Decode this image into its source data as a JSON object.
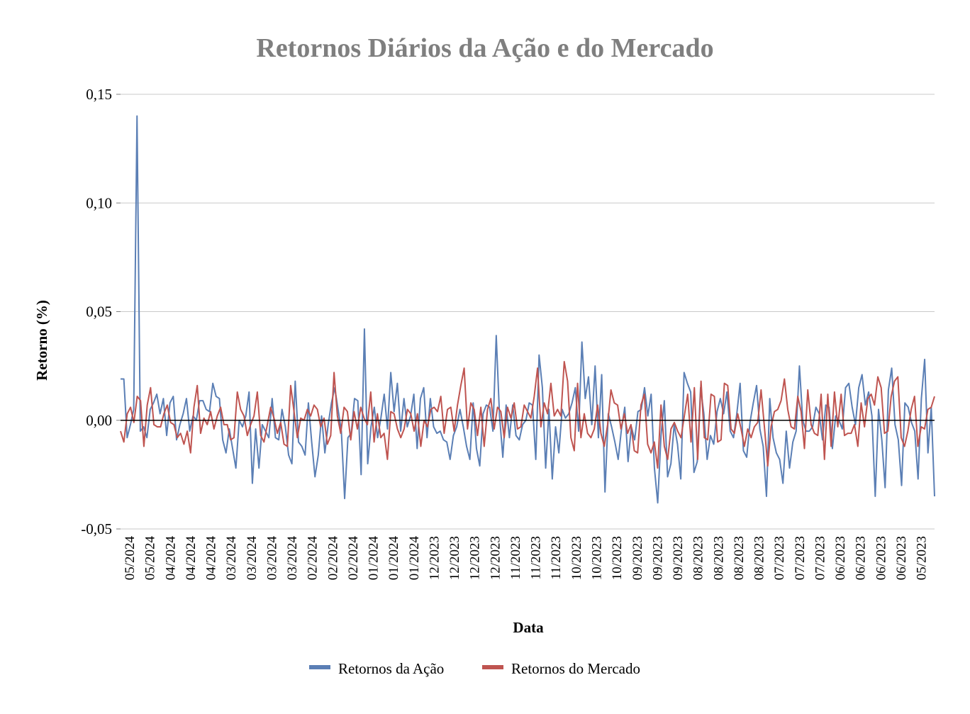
{
  "chart_data": {
    "type": "line",
    "title": "Retornos Diários da Ação e do Mercado",
    "xlabel": "Data",
    "ylabel": "Retorno (%)",
    "ylim": [
      -0.05,
      0.15
    ],
    "yticks": [
      "-0,05",
      "0,00",
      "0,05",
      "0,10",
      "0,15"
    ],
    "ytick_values": [
      -0.05,
      0.0,
      0.05,
      0.1,
      0.15
    ],
    "x_tick_labels": [
      "05/2024",
      "05/2024",
      "04/2024",
      "04/2024",
      "04/2024",
      "03/2024",
      "03/2024",
      "03/2024",
      "03/2024",
      "02/2024",
      "02/2024",
      "02/2024",
      "01/2024",
      "01/2024",
      "01/2024",
      "12/2023",
      "12/2023",
      "12/2023",
      "12/2023",
      "11/2023",
      "11/2023",
      "11/2023",
      "10/2023",
      "10/2023",
      "10/2023",
      "09/2023",
      "09/2023",
      "09/2023",
      "08/2023",
      "08/2023",
      "08/2023",
      "08/2023",
      "07/2023",
      "07/2023",
      "07/2023",
      "06/2023",
      "06/2023",
      "06/2023",
      "06/2023",
      "05/2023"
    ],
    "grid": true,
    "legend_position": "bottom-center",
    "colors": {
      "stock": "#5b7fb5",
      "market": "#bf5450",
      "title": "#7f7f7f",
      "grid": "#c9c9c9",
      "zero": "#000000"
    },
    "series": [
      {
        "name": "Retornos da Ação",
        "color": "#5b7fb5",
        "values": [
          0.019,
          0.019,
          -0.008,
          -0.002,
          0.005,
          0.14,
          -0.005,
          -0.003,
          -0.008,
          0.005,
          0.008,
          0.012,
          0.003,
          0.01,
          -0.007,
          0.008,
          0.011,
          -0.009,
          -0.002,
          0.003,
          0.01,
          -0.005,
          0.002,
          0.0,
          0.009,
          0.009,
          0.005,
          0.004,
          0.017,
          0.011,
          0.01,
          -0.009,
          -0.015,
          -0.004,
          -0.013,
          -0.022,
          0.0,
          -0.003,
          0.002,
          0.013,
          -0.029,
          -0.004,
          -0.022,
          -0.002,
          -0.005,
          -0.008,
          0.01,
          -0.008,
          -0.009,
          0.005,
          -0.003,
          -0.016,
          -0.02,
          0.018,
          -0.01,
          -0.012,
          -0.016,
          0.008,
          -0.01,
          -0.026,
          -0.016,
          0.002,
          -0.015,
          -0.002,
          0.008,
          0.015,
          0.005,
          -0.005,
          -0.036,
          -0.008,
          -0.006,
          0.01,
          0.009,
          -0.025,
          0.042,
          -0.02,
          -0.003,
          0.006,
          -0.008,
          0.001,
          0.012,
          -0.004,
          0.022,
          0.004,
          0.017,
          -0.005,
          0.01,
          -0.003,
          0.002,
          0.012,
          -0.013,
          0.01,
          0.015,
          -0.008,
          0.01,
          -0.003,
          -0.006,
          -0.005,
          -0.009,
          -0.01,
          -0.018,
          -0.007,
          -0.003,
          0.005,
          -0.003,
          -0.012,
          -0.018,
          0.008,
          -0.013,
          -0.021,
          0.003,
          0.007,
          0.006,
          -0.005,
          0.039,
          0.002,
          -0.017,
          0.007,
          -0.008,
          0.007,
          -0.007,
          -0.009,
          -0.002,
          0.0,
          0.008,
          0.007,
          -0.018,
          0.03,
          0.015,
          -0.022,
          0.005,
          -0.027,
          -0.003,
          -0.015,
          0.005,
          0.001,
          0.003,
          0.008,
          0.015,
          -0.005,
          0.036,
          0.01,
          0.02,
          -0.002,
          0.025,
          -0.008,
          0.021,
          -0.033,
          0.003,
          -0.003,
          -0.01,
          -0.018,
          -0.004,
          0.006,
          -0.019,
          -0.003,
          -0.009,
          0.004,
          0.005,
          0.015,
          0.002,
          0.012,
          -0.022,
          -0.038,
          -0.007,
          0.009,
          -0.026,
          -0.02,
          -0.002,
          -0.011,
          -0.027,
          0.022,
          0.017,
          0.013,
          -0.024,
          -0.019,
          0.015,
          0.003,
          -0.018,
          -0.007,
          -0.011,
          0.004,
          0.01,
          0.003,
          0.013,
          -0.005,
          -0.008,
          0.003,
          0.017,
          -0.014,
          -0.017,
          -0.001,
          0.008,
          0.016,
          -0.004,
          -0.012,
          -0.035,
          0.01,
          -0.008,
          -0.015,
          -0.018,
          -0.029,
          -0.005,
          -0.022,
          -0.01,
          -0.005,
          0.025,
          0.0,
          -0.005,
          -0.005,
          -0.003,
          0.006,
          0.003,
          -0.009,
          0.007,
          0.006,
          -0.013,
          0.002,
          0.0,
          -0.004,
          0.015,
          0.017,
          0.006,
          -0.002,
          0.015,
          0.021,
          0.007,
          0.013,
          0.002,
          -0.035,
          0.005,
          -0.009,
          -0.031,
          0.014,
          0.024,
          -0.002,
          -0.009,
          -0.03,
          0.008,
          0.006,
          -0.001,
          -0.005,
          -0.027,
          0.01,
          0.028,
          -0.015,
          0.006,
          -0.035
        ]
      },
      {
        "name": "Retornos do Mercado",
        "color": "#bf5450",
        "values": [
          -0.005,
          -0.01,
          0.003,
          0.006,
          -0.001,
          0.011,
          0.009,
          -0.012,
          0.007,
          0.015,
          -0.002,
          -0.003,
          -0.003,
          0.003,
          0.007,
          -0.001,
          -0.002,
          -0.008,
          -0.006,
          -0.011,
          -0.005,
          -0.015,
          0.006,
          0.016,
          -0.006,
          0.001,
          -0.002,
          0.004,
          -0.004,
          0.002,
          0.006,
          -0.002,
          -0.002,
          -0.009,
          -0.008,
          0.013,
          0.005,
          0.002,
          -0.007,
          -0.002,
          0.002,
          0.013,
          -0.007,
          -0.01,
          -0.002,
          0.006,
          0.001,
          -0.006,
          -0.001,
          -0.011,
          -0.012,
          0.016,
          0.004,
          -0.008,
          0.001,
          0.0,
          0.005,
          0.002,
          0.007,
          0.005,
          -0.003,
          0.001,
          -0.011,
          -0.007,
          0.022,
          0.002,
          -0.006,
          0.006,
          0.004,
          -0.009,
          0.004,
          -0.004,
          0.006,
          0.001,
          -0.002,
          0.013,
          -0.01,
          0.003,
          -0.008,
          -0.006,
          -0.018,
          0.004,
          0.003,
          -0.004,
          -0.008,
          -0.004,
          0.005,
          0.003,
          -0.005,
          0.003,
          -0.012,
          0.0,
          -0.003,
          0.005,
          0.006,
          0.004,
          0.011,
          -0.006,
          0.005,
          0.006,
          -0.005,
          0.007,
          0.016,
          0.024,
          -0.004,
          0.008,
          0.005,
          -0.007,
          0.006,
          -0.012,
          0.005,
          0.01,
          -0.004,
          0.006,
          0.004,
          -0.008,
          0.006,
          0.001,
          0.008,
          -0.004,
          -0.003,
          0.007,
          0.004,
          0.001,
          0.011,
          0.024,
          -0.003,
          0.008,
          0.003,
          0.017,
          0.002,
          0.005,
          0.002,
          0.027,
          0.018,
          -0.008,
          -0.014,
          0.017,
          -0.008,
          0.003,
          -0.006,
          -0.008,
          -0.004,
          0.007,
          -0.006,
          -0.012,
          -0.002,
          0.014,
          0.008,
          0.007,
          -0.004,
          0.003,
          -0.006,
          -0.002,
          -0.014,
          -0.015,
          0.007,
          0.012,
          -0.011,
          -0.015,
          -0.01,
          -0.022,
          0.007,
          -0.012,
          -0.018,
          -0.004,
          -0.001,
          -0.005,
          -0.008,
          0.002,
          0.012,
          -0.01,
          0.015,
          -0.018,
          0.018,
          -0.008,
          -0.009,
          0.012,
          0.011,
          -0.01,
          -0.009,
          0.017,
          0.016,
          -0.004,
          -0.006,
          0.003,
          -0.004,
          -0.012,
          -0.004,
          -0.008,
          -0.003,
          -0.001,
          0.014,
          -0.003,
          -0.021,
          -0.003,
          0.004,
          0.005,
          0.009,
          0.019,
          0.005,
          -0.003,
          -0.004,
          0.011,
          0.004,
          -0.013,
          0.014,
          -0.002,
          -0.006,
          -0.007,
          0.012,
          -0.018,
          0.012,
          -0.012,
          0.013,
          -0.003,
          0.012,
          -0.007,
          -0.006,
          -0.006,
          -0.002,
          -0.012,
          0.008,
          -0.003,
          0.01,
          0.012,
          0.007,
          0.02,
          0.015,
          -0.006,
          -0.005,
          0.011,
          0.018,
          0.02,
          -0.008,
          -0.012,
          -0.005,
          0.005,
          0.011,
          -0.012,
          -0.003,
          -0.004,
          0.005,
          0.006,
          0.011
        ]
      }
    ]
  }
}
